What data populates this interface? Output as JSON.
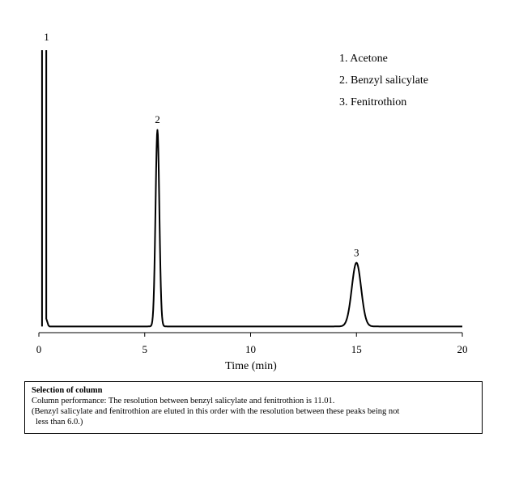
{
  "chart_data": {
    "type": "line",
    "xlabel": "Time (min)",
    "ylabel": "",
    "xlim": [
      0,
      20
    ],
    "ylim": [
      0,
      100
    ],
    "x_ticks": [
      0,
      5,
      10,
      15,
      20
    ],
    "x_tick_labels": [
      "0",
      "5",
      "10",
      "15",
      "20"
    ],
    "grid": false,
    "legend_position": "top-right",
    "legend_entries": [
      "1. Acetone",
      "2. Benzyl salicylate",
      "3. Fenitrothion"
    ],
    "peaks": [
      {
        "label": "1",
        "name": "Acetone",
        "retention_time": 0.25,
        "height": 100,
        "width": 0.05
      },
      {
        "label": "2",
        "name": "Benzyl salicylate",
        "retention_time": 5.6,
        "height": 71,
        "width": 0.09
      },
      {
        "label": "3",
        "name": "Fenitrothion",
        "retention_time": 15.0,
        "height": 23,
        "width": 0.22
      }
    ],
    "baseline": 0.2
  },
  "note": {
    "title": "Selection of column",
    "line1": "Column performance: The resolution between benzyl salicylate and fenitrothion is 11.01.",
    "line2": "(Benzyl salicylate and fenitrothion are eluted in this order with the resolution between these peaks being not",
    "line3": "less than 6.0.)"
  }
}
